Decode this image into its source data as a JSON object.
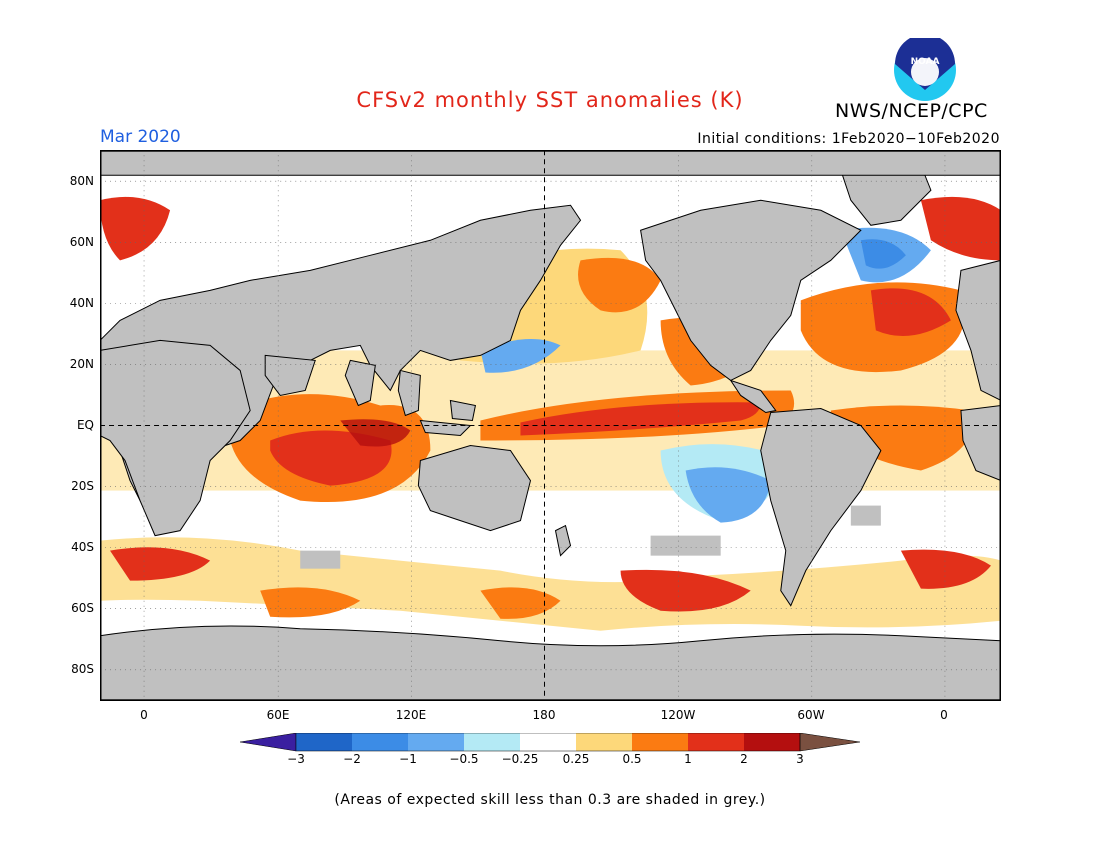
{
  "header": {
    "title": "CFSv2 monthly SST anomalies (K)",
    "agency": "NWS/NCEP/CPC",
    "logo_text": "NOAA",
    "month": "Mar 2020",
    "initial_conditions": "Initial conditions: 1Feb2020−10Feb2020"
  },
  "map": {
    "lat_labels": [
      "80N",
      "60N",
      "40N",
      "20N",
      "EQ",
      "20S",
      "40S",
      "60S",
      "80S"
    ],
    "lon_labels": [
      "0",
      "60E",
      "120E",
      "180",
      "120W",
      "60W",
      "0"
    ],
    "land_color": "#c0c0c0",
    "regions": [
      {
        "name": "equatorial-pacific-warm",
        "level": 2
      },
      {
        "name": "southeast-pacific-cool",
        "level": -1
      },
      {
        "name": "north-pacific-cool",
        "level": -1
      },
      {
        "name": "north-atlantic-cool",
        "level": -1
      },
      {
        "name": "indian-ocean-warm",
        "level": 1
      }
    ]
  },
  "colorbar": {
    "labels": [
      "−3",
      "−2",
      "−1",
      "−0.5",
      "−0.25",
      "0.25",
      "0.5",
      "1",
      "2",
      "3"
    ],
    "colors": [
      "#3a1fa0",
      "#1f66c8",
      "#3c8ce6",
      "#64aaf0",
      "#b4eaf5",
      "#ffffff",
      "#fdd87a",
      "#fb7b12",
      "#e2301a",
      "#b40f0f",
      "#7a5040"
    ]
  },
  "footnote": "(Areas of expected skill less than 0.3 are shaded in grey.)"
}
